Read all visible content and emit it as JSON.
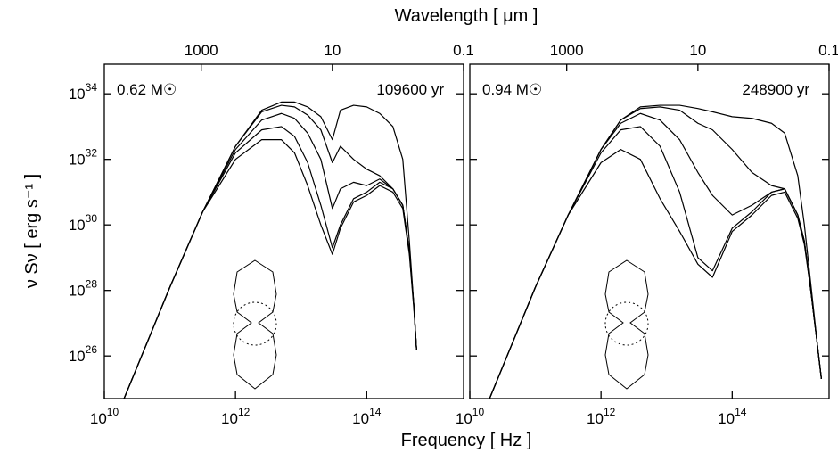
{
  "chart_data": [
    {
      "type": "line",
      "color": "#000000",
      "log_x": true,
      "log_y": true,
      "x2label": "Wavelength  [ μm ]",
      "xlabel": "Frequency  [ Hz ]",
      "ylabel": "ν Sν  [ erg s⁻¹ ]",
      "annotations": [
        "0.62 M☉",
        "109600 yr"
      ],
      "xlim": [
        10000000000.0,
        3000000000000000.0
      ],
      "ylim": [
        5e+24,
        8e+34
      ],
      "x2lim": [
        30000,
        0.1
      ],
      "xticks": [
        {
          "value": 10000000000.0,
          "label": "10",
          "exponent": "10"
        },
        {
          "value": 1000000000000.0,
          "label": "10",
          "exponent": "12"
        },
        {
          "value": 100000000000000.0,
          "label": "10",
          "exponent": "14"
        }
      ],
      "x2ticks": [
        1000,
        10,
        0.1
      ],
      "yticks": [
        {
          "value": 1e+26,
          "label": "10",
          "exponent": "26"
        },
        {
          "value": 1e+28,
          "label": "10",
          "exponent": "28"
        },
        {
          "value": 1e+30,
          "label": "10",
          "exponent": "30"
        },
        {
          "value": 1e+32,
          "label": "10",
          "exponent": "32"
        },
        {
          "value": 1e+34,
          "label": "10",
          "exponent": "34"
        }
      ],
      "x": [
        20000000000.0,
        100000000000.0,
        316000000000.0,
        1000000000000.0,
        2510000000000.0,
        5010000000000.0,
        7940000000000.0,
        12600000000000.0,
        20000000000000.0,
        30000000000000.0,
        39800000000000.0,
        63100000000000.0,
        100000000000000.0,
        158000000000000.0,
        251000000000000.0,
        355000000000000.0,
        447000000000000.0,
        525000000000000.0,
        575000000000000.0
      ],
      "series": [
        {
          "values": [
            5e+24,
            1.26e+28,
            2.51e+30,
            2.51e+32,
            3.16e+33,
            5.62e+33,
            5.62e+33,
            3.98e+33,
            2e+33,
            3.98e+32,
            3.16e+33,
            4.47e+33,
            3.98e+33,
            2.51e+33,
            1e+33,
            1e+32,
            3.16e+29,
            3.16e+27,
            1.58e+26
          ]
        },
        {
          "values": [
            5e+24,
            1.26e+28,
            2.51e+30,
            2.51e+32,
            2.82e+33,
            4.47e+33,
            3.98e+33,
            2.24e+33,
            7.94e+32,
            7.94e+31,
            2.51e+32,
            1e+32,
            5.01e+31,
            3.16e+31,
            1.26e+31,
            3.98e+30,
            1.58e+29,
            3.16e+27,
            1.58e+26
          ]
        },
        {
          "values": [
            5e+24,
            1.26e+28,
            2.51e+30,
            2e+32,
            1.58e+33,
            2.51e+33,
            1.78e+33,
            6.31e+32,
            1e+32,
            3.16e+30,
            1.26e+31,
            2e+31,
            1.58e+31,
            2.51e+31,
            1.26e+31,
            3.98e+30,
            1.58e+29,
            3.16e+27,
            1.58e+26
          ]
        },
        {
          "values": [
            5e+24,
            1.26e+28,
            2.51e+30,
            1.58e+32,
            7.94e+32,
            1e+33,
            5.01e+32,
            7.94e+31,
            3.98e+30,
            2e+29,
            1e+30,
            6.31e+30,
            1e+31,
            2e+31,
            1.26e+31,
            3.98e+30,
            1.58e+29,
            3.16e+27,
            1.58e+26
          ]
        },
        {
          "values": [
            5e+24,
            1.26e+28,
            2.51e+30,
            1e+32,
            3.98e+32,
            3.98e+32,
            1.58e+32,
            1.58e+31,
            1e+30,
            1.26e+29,
            7.94e+29,
            5.01e+30,
            7.94e+30,
            1.58e+31,
            1e+31,
            3.16e+30,
            1.26e+29,
            2.51e+27,
            1.58e+26
          ]
        }
      ]
    },
    {
      "type": "line",
      "color": "#000000",
      "log_x": true,
      "log_y": true,
      "annotations": [
        "0.94 M☉",
        "248900 yr"
      ],
      "xlim": [
        10000000000.0,
        3000000000000000.0
      ],
      "ylim": [
        5e+24,
        8e+34
      ],
      "x2lim": [
        30000,
        0.1
      ],
      "xticks": [
        {
          "value": 10000000000.0,
          "label": "10",
          "exponent": "10"
        },
        {
          "value": 1000000000000.0,
          "label": "10",
          "exponent": "12"
        },
        {
          "value": 100000000000000.0,
          "label": "10",
          "exponent": "14"
        }
      ],
      "x2ticks": [
        1000,
        10,
        0.1
      ],
      "x": [
        20000000000.0,
        100000000000.0,
        316000000000.0,
        1000000000000.0,
        2000000000000.0,
        3980000000000.0,
        7940000000000.0,
        15800000000000.0,
        30000000000000.0,
        50100000000000.0,
        100000000000000.0,
        200000000000000.0,
        398000000000000.0,
        631000000000000.0,
        1000000000000000.0,
        1260000000000000.0,
        1580000000000000.0,
        2000000000000000.0,
        2290000000000000.0
      ],
      "series": [
        {
          "values": [
            5e+24,
            1.26e+28,
            2e+30,
            2e+32,
            1.58e+33,
            3.98e+33,
            4.47e+33,
            4.47e+33,
            3.55e+33,
            2.82e+33,
            2e+33,
            1.78e+33,
            1.26e+33,
            6.31e+32,
            3.16e+31,
            1e+30,
            1.58e+28,
            2e+26,
            2e+25
          ]
        },
        {
          "values": [
            5e+24,
            1.26e+28,
            2e+30,
            2e+32,
            1.58e+33,
            3.55e+33,
            3.98e+33,
            3.16e+33,
            1.26e+33,
            7.94e+32,
            2e+32,
            3.98e+31,
            1.58e+31,
            1.26e+31,
            2e+30,
            3.16e+29,
            1e+28,
            2e+26,
            2e+25
          ]
        },
        {
          "values": [
            5e+24,
            1.26e+28,
            2e+30,
            2e+32,
            1.26e+33,
            2.51e+33,
            1.58e+33,
            3.98e+32,
            3.98e+31,
            7.94e+30,
            2e+30,
            3.98e+30,
            1e+31,
            1.26e+31,
            2e+30,
            3.16e+29,
            1e+28,
            2e+26,
            2e+25
          ]
        },
        {
          "values": [
            5e+24,
            1.26e+28,
            2e+30,
            1.58e+32,
            7.94e+32,
            1e+33,
            2.51e+32,
            1e+31,
            1e+29,
            3.98e+28,
            7.94e+29,
            2.51e+30,
            1e+31,
            1.26e+31,
            2e+30,
            3.16e+29,
            1e+28,
            2e+26,
            2e+25
          ]
        },
        {
          "values": [
            5e+24,
            1.26e+28,
            2e+30,
            7.94e+31,
            2e+32,
            1e+32,
            6.31e+30,
            6.31e+29,
            6.31e+28,
            2.51e+28,
            6.31e+29,
            2e+30,
            7.94e+30,
            1e+31,
            1.58e+30,
            2.51e+29,
            1e+28,
            2e+26,
            2e+25
          ]
        }
      ]
    }
  ]
}
